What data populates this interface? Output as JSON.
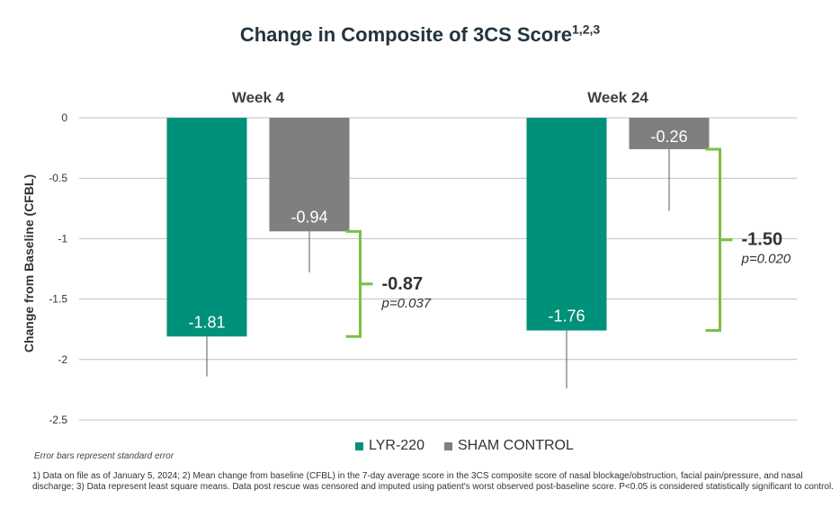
{
  "chart_data": {
    "type": "bar",
    "title": "Change in Composite of 3CS Score",
    "title_superscript": "1,2,3",
    "ylabel": "Change from Baseline (CFBL)",
    "ylim": [
      -2.5,
      0
    ],
    "yticks": [
      "0",
      "-0.5",
      "-1",
      "-1.5",
      "-2",
      "-2.5"
    ],
    "ytick_values": [
      0,
      -0.5,
      -1,
      -1.5,
      -2,
      -2.5
    ],
    "grid": true,
    "categories": [
      "Week 4",
      "Week 24"
    ],
    "series": [
      {
        "name": "LYR-220",
        "color": "#00917a",
        "values": [
          -1.81,
          -1.76
        ],
        "labels": [
          "-1.81",
          "-1.76"
        ],
        "error_lower": [
          -2.14,
          -2.24
        ]
      },
      {
        "name": "SHAM CONTROL",
        "color": "#7f7f7f",
        "values": [
          -0.94,
          -0.26
        ],
        "labels": [
          "-0.94",
          "-0.26"
        ],
        "error_lower": [
          -1.28,
          -0.77
        ]
      }
    ],
    "differences": [
      {
        "value": "-0.87",
        "p": "p=0.037"
      },
      {
        "value": "-1.50",
        "p": "p=0.020"
      }
    ],
    "bracket_color": "#7ac143",
    "legend_position": "bottom-center"
  },
  "note": "Error bars represent standard error",
  "footnote": "1) Data on file as of January 5, 2024; 2) Mean change from baseline (CFBL) in the 7-day average score in the 3CS composite score of nasal blockage/obstruction, facial pain/pressure, and nasal discharge; 3) Data represent least square means. Data post rescue was censored and imputed using patient's worst observed post-baseline score. P<0.05 is considered statistically significant to control."
}
